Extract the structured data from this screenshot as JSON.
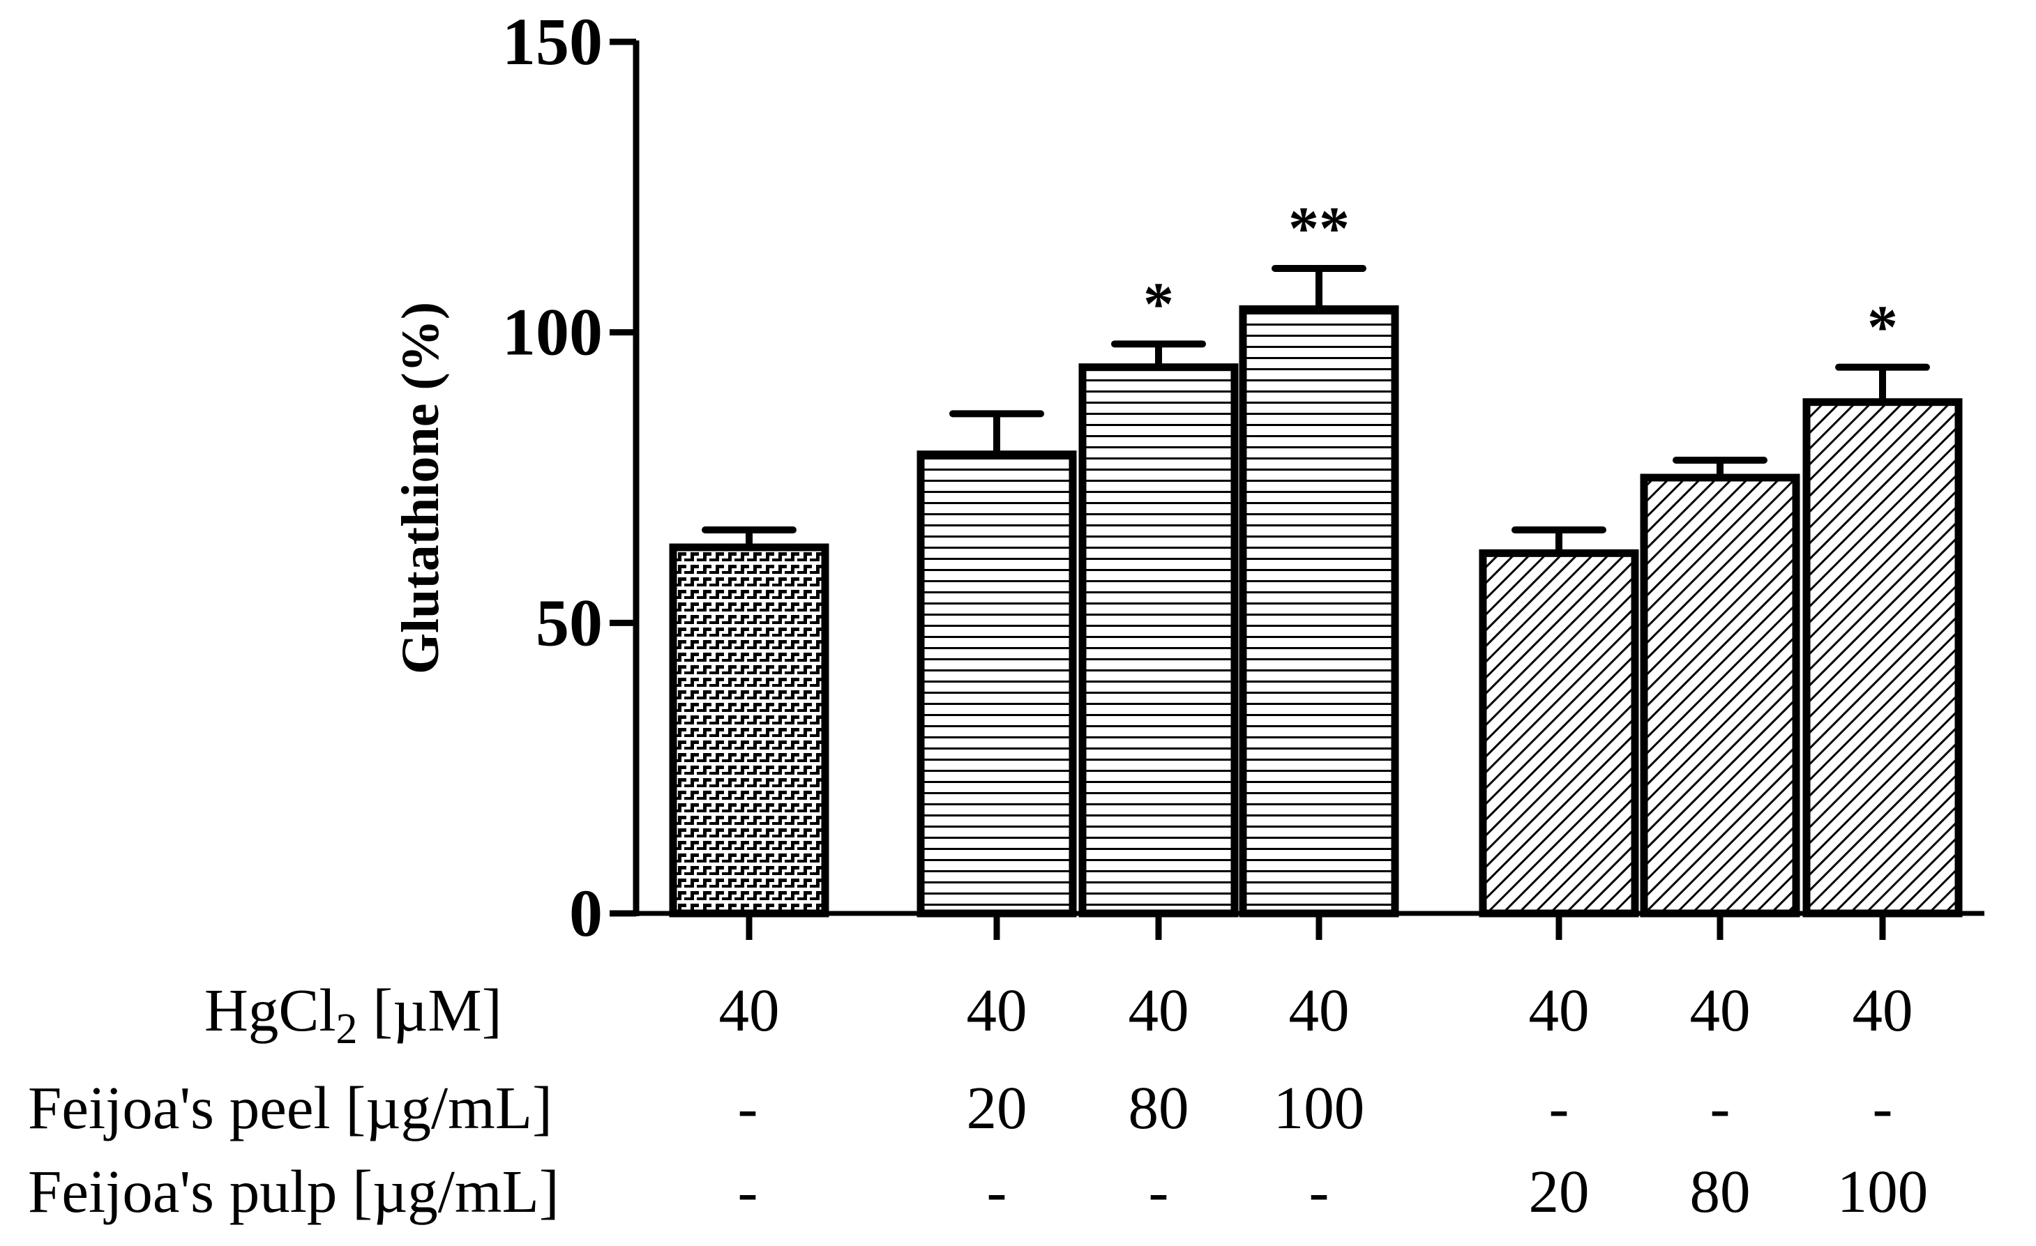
{
  "chart_data": {
    "type": "bar",
    "title": "",
    "xlabel": "",
    "ylabel": "Glutathione (%)",
    "ylim": [
      0,
      150
    ],
    "yticks": [
      0,
      50,
      100,
      150
    ],
    "categories": [
      "HgCl2",
      "HgCl2 + Peel 20",
      "HgCl2 + Peel 80",
      "HgCl2 + Peel 100",
      "HgCl2 + Pulp 20",
      "HgCl2 + Pulp 80",
      "HgCl2 + Pulp 100"
    ],
    "values": [
      63,
      79,
      94,
      104,
      62,
      75,
      88
    ],
    "errors": [
      3,
      7,
      4,
      7,
      4,
      3,
      6
    ],
    "significance": [
      "",
      "",
      "*",
      "**",
      "",
      "",
      "*"
    ],
    "patterns": [
      "checker",
      "hstripe",
      "hstripe",
      "hstripe",
      "diag",
      "diag",
      "diag"
    ],
    "conditions": {
      "hgcl2": {
        "label_main": "HgCl",
        "label_sub": "2",
        "label_unit": " [µM]",
        "values": [
          "40",
          "40",
          "40",
          "40",
          "40",
          "40",
          "40"
        ]
      },
      "peel": {
        "label": "Feijoa's peel  [µg/mL]",
        "values": [
          "-",
          "20",
          "80",
          "100",
          "-",
          "-",
          "-"
        ]
      },
      "pulp": {
        "label": "Feijoa's pulp  [µg/mL]",
        "values": [
          "-",
          "-",
          "-",
          "-",
          "20",
          "80",
          "100"
        ]
      }
    }
  }
}
